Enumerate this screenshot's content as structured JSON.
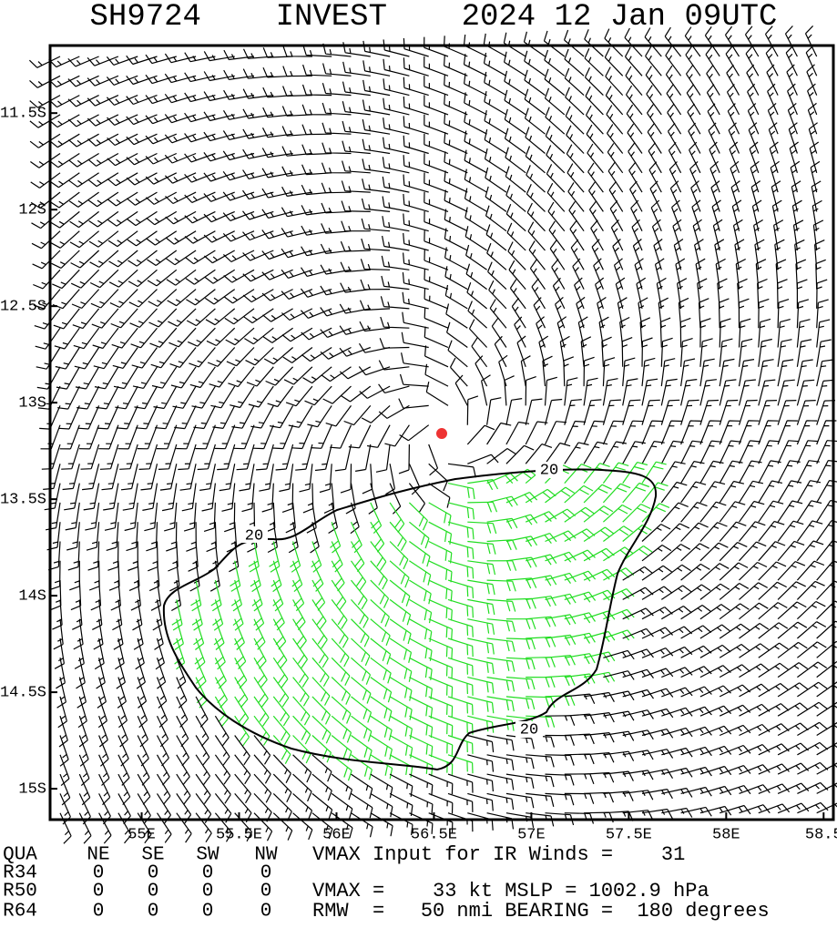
{
  "chart_data": {
    "type": "wind_barbs",
    "title": "SH9724    INVEST    2024 12 Jan 09UTC",
    "xlim": [
      54.53,
      58.55
    ],
    "ylim": [
      -15.16,
      -11.15
    ],
    "xticks": [
      {
        "value": 55,
        "label": "55E"
      },
      {
        "value": 55.5,
        "label": "55.5E"
      },
      {
        "value": 56,
        "label": "56E"
      },
      {
        "value": 56.5,
        "label": "56.5E"
      },
      {
        "value": 57,
        "label": "57E"
      },
      {
        "value": 57.5,
        "label": "57.5E"
      },
      {
        "value": 58,
        "label": "58E"
      },
      {
        "value": 58.5,
        "label": "58.5"
      }
    ],
    "yticks": [
      {
        "value": -11.5,
        "label": "11.5S"
      },
      {
        "value": -12,
        "label": "12S"
      },
      {
        "value": -12.5,
        "label": "12.5S"
      },
      {
        "value": -13,
        "label": "13S"
      },
      {
        "value": -13.5,
        "label": "13.5S"
      },
      {
        "value": -14,
        "label": "14S"
      },
      {
        "value": -14.5,
        "label": "14.5S"
      },
      {
        "value": -15,
        "label": "15S"
      }
    ],
    "contour_level": 20,
    "center": {
      "lon": 56.54,
      "lat": -13.16,
      "color": "#ee3333"
    },
    "barb_colors": {
      "below": "#000000",
      "above": "#22dd22"
    },
    "table": {
      "header": [
        "QUA",
        "NE",
        "SE",
        "SW",
        "NW"
      ],
      "rows": [
        [
          "R34",
          0,
          0,
          0,
          0
        ],
        [
          "R50",
          0,
          0,
          0,
          0
        ],
        [
          "R64",
          0,
          0,
          0,
          0
        ]
      ]
    },
    "notes": [
      "VMAX Input for IR Winds =    31",
      "VMAX =    33 kt MSLP = 1002.9 hPa",
      "RMW  =   50 nmi BEARING =  180 degrees"
    ]
  }
}
